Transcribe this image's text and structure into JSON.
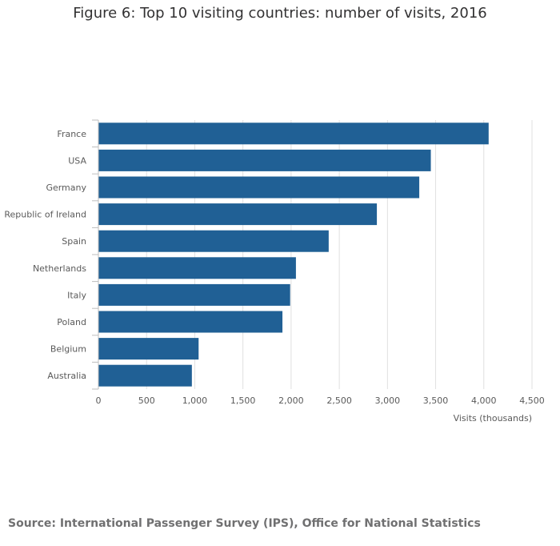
{
  "chart_data": {
    "type": "bar",
    "orientation": "horizontal",
    "title": "Figure 6: Top 10 visiting countries: number of visits, 2016",
    "categories": [
      "France",
      "USA",
      "Germany",
      "Republic of Ireland",
      "Spain",
      "Netherlands",
      "Italy",
      "Poland",
      "Belgium",
      "Australia"
    ],
    "values": [
      4050,
      3450,
      3330,
      2890,
      2390,
      2050,
      1990,
      1910,
      1040,
      970
    ],
    "xlabel": "Visits (thousands)",
    "ylabel": "",
    "xlim": [
      0,
      4500
    ],
    "xticks": [
      0,
      500,
      1000,
      1500,
      2000,
      2500,
      3000,
      3500,
      4000,
      4500
    ],
    "xtick_labels": [
      "0",
      "500",
      "1,000",
      "1,500",
      "2,000",
      "2,500",
      "3,000",
      "3,500",
      "4,000",
      "4,500"
    ],
    "grid": true,
    "bar_color": "#206095"
  },
  "source": "Source: International Passenger Survey (IPS), Office for National Statistics",
  "colors": {
    "bar": "#206095",
    "grid": "#e0e0e0",
    "axis": "#bebebe",
    "title": "#323132",
    "label": "#5a5a5a",
    "source": "#707071"
  }
}
